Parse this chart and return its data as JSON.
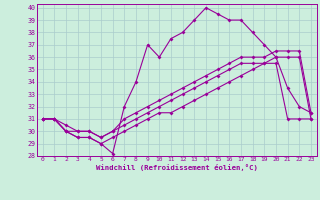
{
  "xlabel": "Windchill (Refroidissement éolien,°C)",
  "bg_color": "#cceedd",
  "line_color": "#990099",
  "grid_color": "#aacccc",
  "xlim": [
    -0.5,
    23.5
  ],
  "ylim": [
    28,
    40.3
  ],
  "yticks": [
    28,
    29,
    30,
    31,
    32,
    33,
    34,
    35,
    36,
    37,
    38,
    39,
    40
  ],
  "xticks": [
    0,
    1,
    2,
    3,
    4,
    5,
    6,
    7,
    8,
    9,
    10,
    11,
    12,
    13,
    14,
    15,
    16,
    17,
    18,
    19,
    20,
    21,
    22,
    23
  ],
  "series1_x": [
    0,
    1,
    2,
    3,
    4,
    5,
    6,
    7,
    8,
    9,
    10,
    11,
    12,
    13,
    14,
    15,
    16,
    17,
    18,
    19,
    20,
    21,
    22,
    23
  ],
  "series1_y": [
    31.0,
    31.0,
    30.0,
    29.5,
    29.5,
    29.0,
    28.2,
    32.0,
    34.0,
    37.0,
    36.0,
    37.5,
    38.0,
    39.0,
    40.0,
    39.5,
    39.0,
    39.0,
    38.0,
    37.0,
    36.0,
    33.5,
    32.0,
    31.5
  ],
  "series2_x": [
    0,
    1,
    2,
    3,
    4,
    5,
    6,
    7,
    8,
    9,
    10,
    11,
    12,
    13,
    14,
    15,
    16,
    17,
    18,
    19,
    20,
    21,
    22,
    23
  ],
  "series2_y": [
    31.0,
    31.0,
    30.0,
    30.0,
    30.0,
    29.5,
    30.0,
    30.5,
    31.0,
    31.5,
    32.0,
    32.5,
    33.0,
    33.5,
    34.0,
    34.5,
    35.0,
    35.5,
    35.5,
    35.5,
    36.0,
    36.0,
    36.0,
    31.0
  ],
  "series3_x": [
    0,
    1,
    2,
    3,
    4,
    5,
    6,
    7,
    8,
    9,
    10,
    11,
    12,
    13,
    14,
    15,
    16,
    17,
    18,
    19,
    20,
    21,
    22,
    23
  ],
  "series3_y": [
    31.0,
    31.0,
    30.5,
    30.0,
    30.0,
    29.5,
    30.0,
    31.0,
    31.5,
    32.0,
    32.5,
    33.0,
    33.5,
    34.0,
    34.5,
    35.0,
    35.5,
    36.0,
    36.0,
    36.0,
    36.5,
    36.5,
    36.5,
    31.5
  ],
  "series4_x": [
    0,
    1,
    2,
    3,
    4,
    5,
    6,
    7,
    8,
    9,
    10,
    11,
    12,
    13,
    14,
    15,
    16,
    17,
    18,
    19,
    20,
    21,
    22,
    23
  ],
  "series4_y": [
    31.0,
    31.0,
    30.0,
    29.5,
    29.5,
    29.0,
    29.5,
    30.0,
    30.5,
    31.0,
    31.5,
    31.5,
    32.0,
    32.5,
    33.0,
    33.5,
    34.0,
    34.5,
    35.0,
    35.5,
    35.5,
    31.0,
    31.0,
    31.0
  ]
}
